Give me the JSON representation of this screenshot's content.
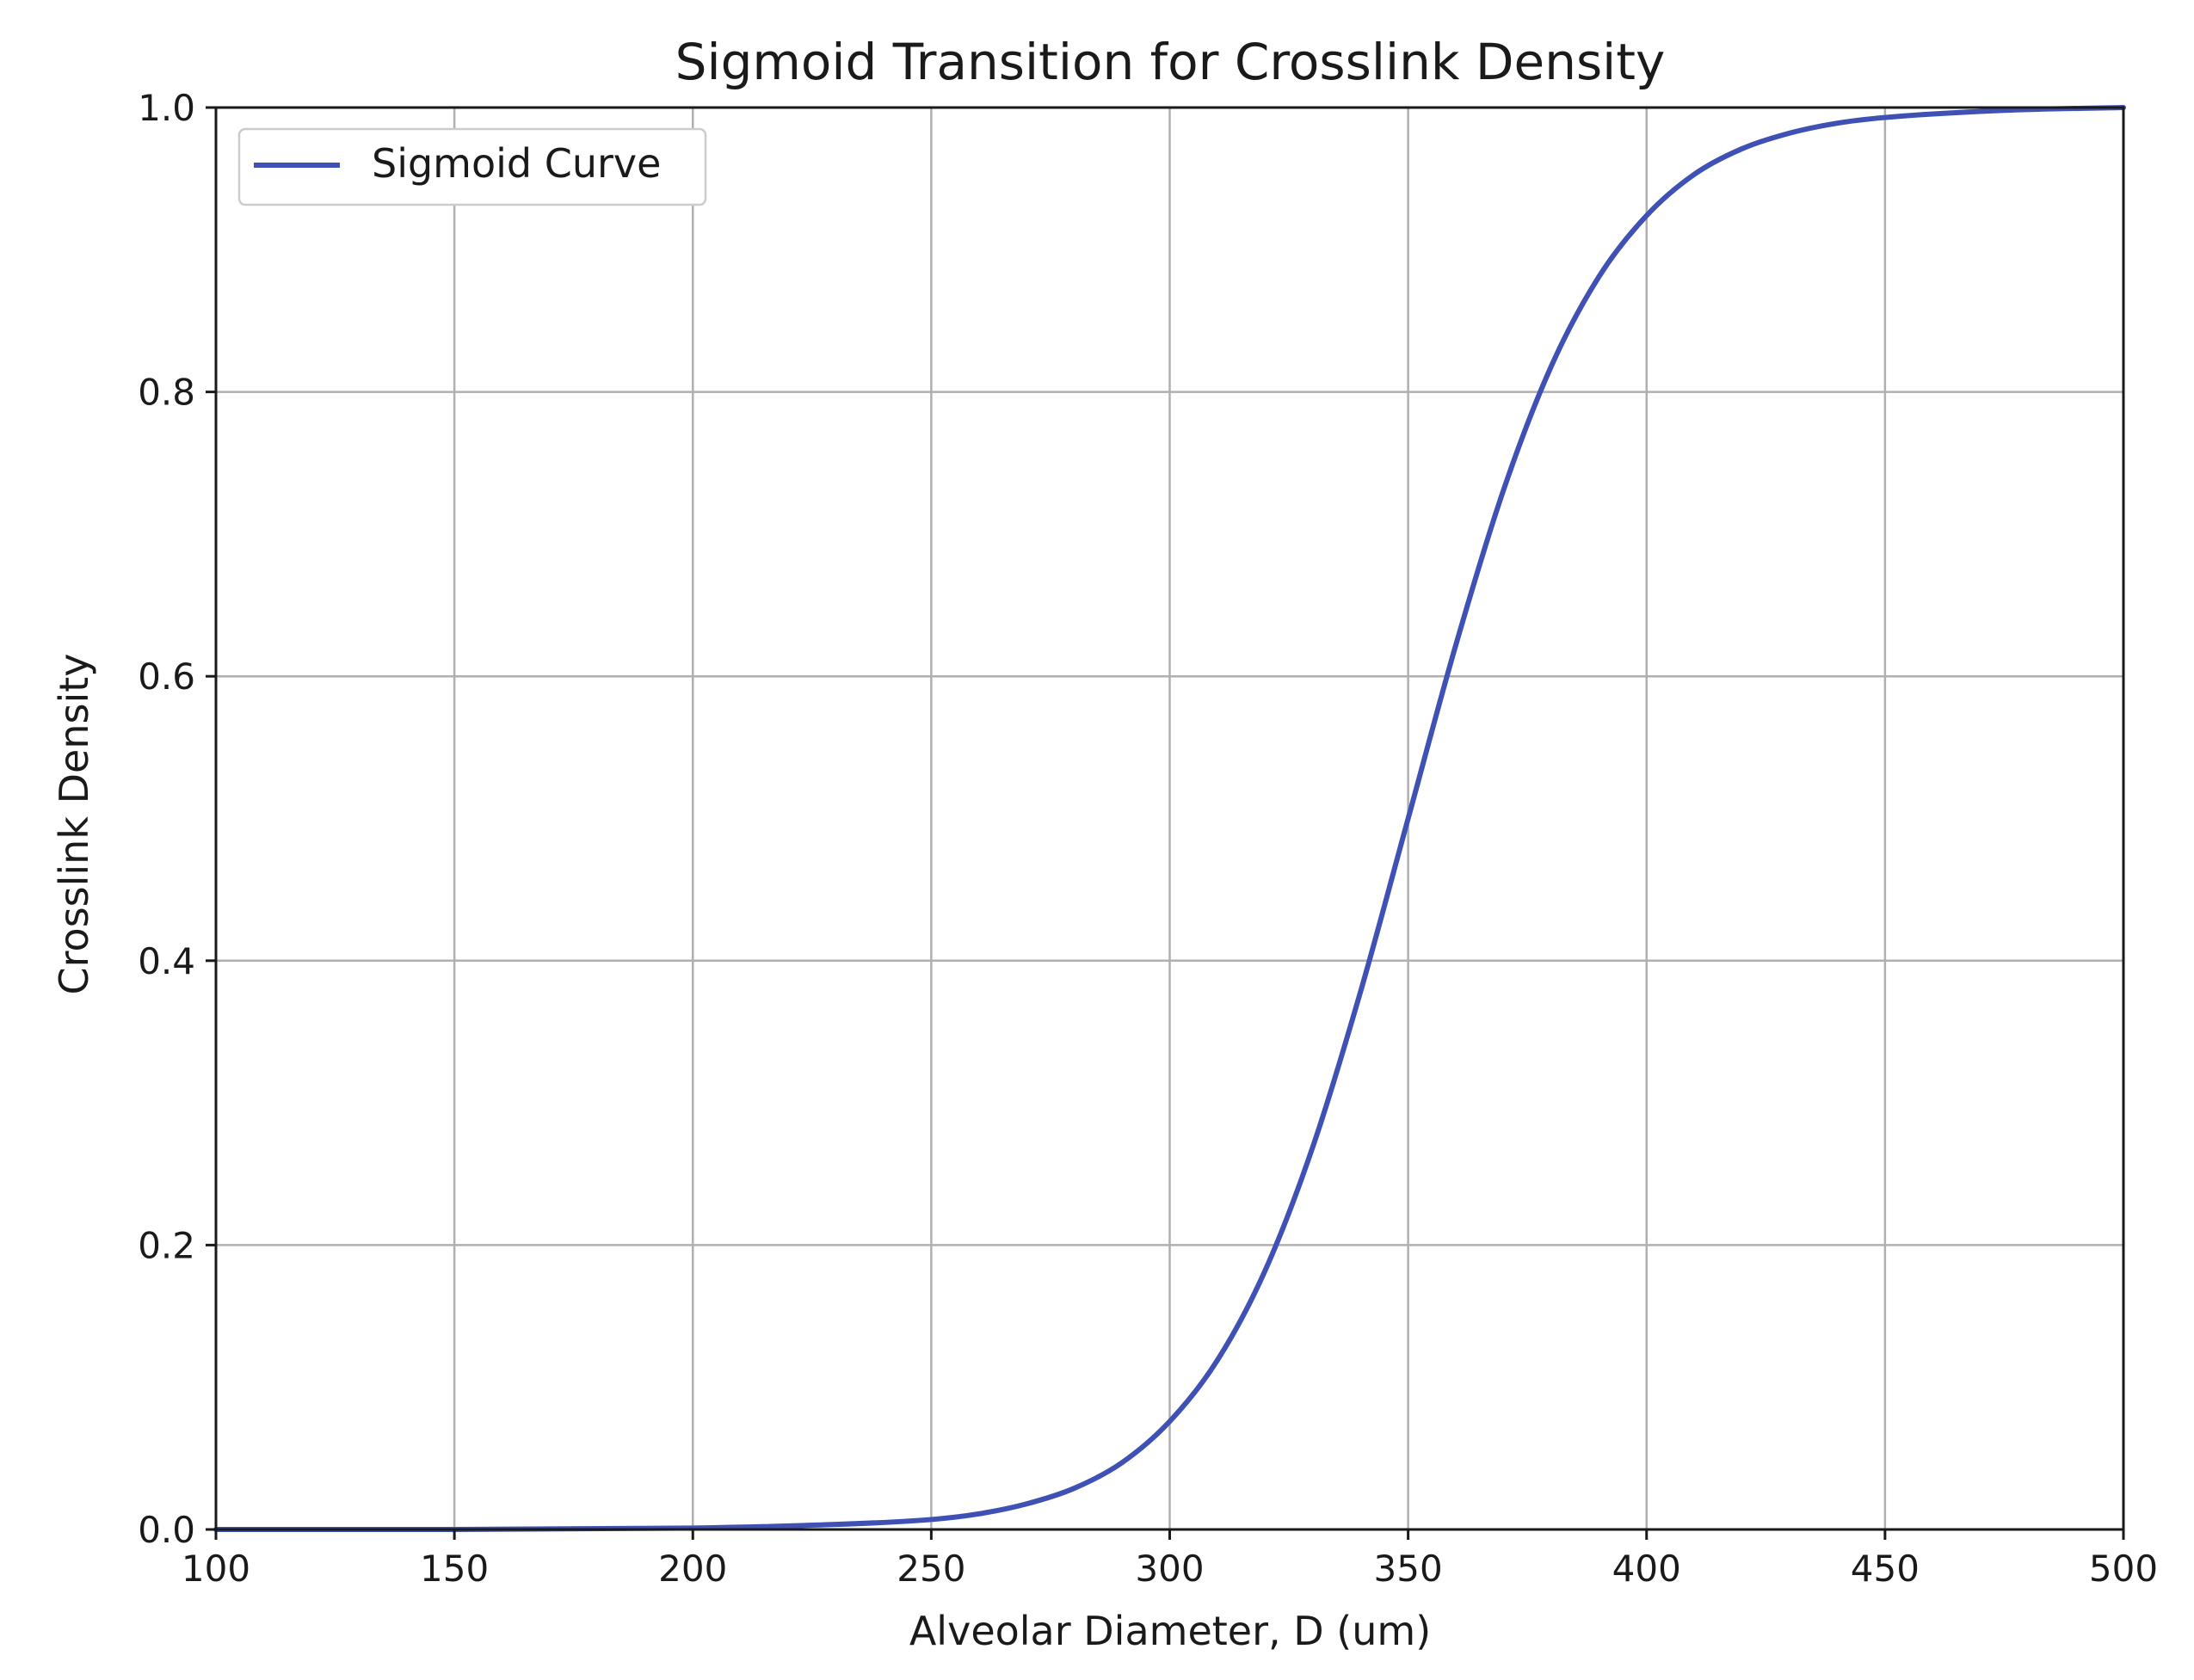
{
  "chart_data": {
    "type": "line",
    "title": "Sigmoid Transition for Crosslink Density",
    "xlabel": "Alveolar Diameter, D (um)",
    "ylabel": "Crosslink Density",
    "xlim": [
      100,
      500
    ],
    "ylim": [
      0.0,
      1.0
    ],
    "x_ticks": [
      "100",
      "150",
      "200",
      "250",
      "300",
      "350",
      "400",
      "450",
      "500"
    ],
    "y_ticks": [
      "0.0",
      "0.2",
      "0.4",
      "0.6",
      "0.8",
      "1.0"
    ],
    "grid": true,
    "legend_position": "upper-left",
    "series": [
      {
        "name": "Sigmoid Curve",
        "color": "#3f51b5",
        "x": [
          100,
          150,
          200,
          225,
          250,
          260,
          270,
          280,
          290,
          300,
          310,
          320,
          330,
          340,
          350,
          360,
          370,
          380,
          390,
          400,
          410,
          420,
          430,
          440,
          450,
          475,
          500
        ],
        "y": [
          0.0,
          0.0,
          0.001,
          0.003,
          0.007,
          0.011,
          0.018,
          0.029,
          0.047,
          0.076,
          0.119,
          0.182,
          0.269,
          0.378,
          0.5,
          0.622,
          0.731,
          0.818,
          0.881,
          0.924,
          0.953,
          0.971,
          0.982,
          0.989,
          0.993,
          0.998,
          1.0
        ]
      }
    ]
  }
}
